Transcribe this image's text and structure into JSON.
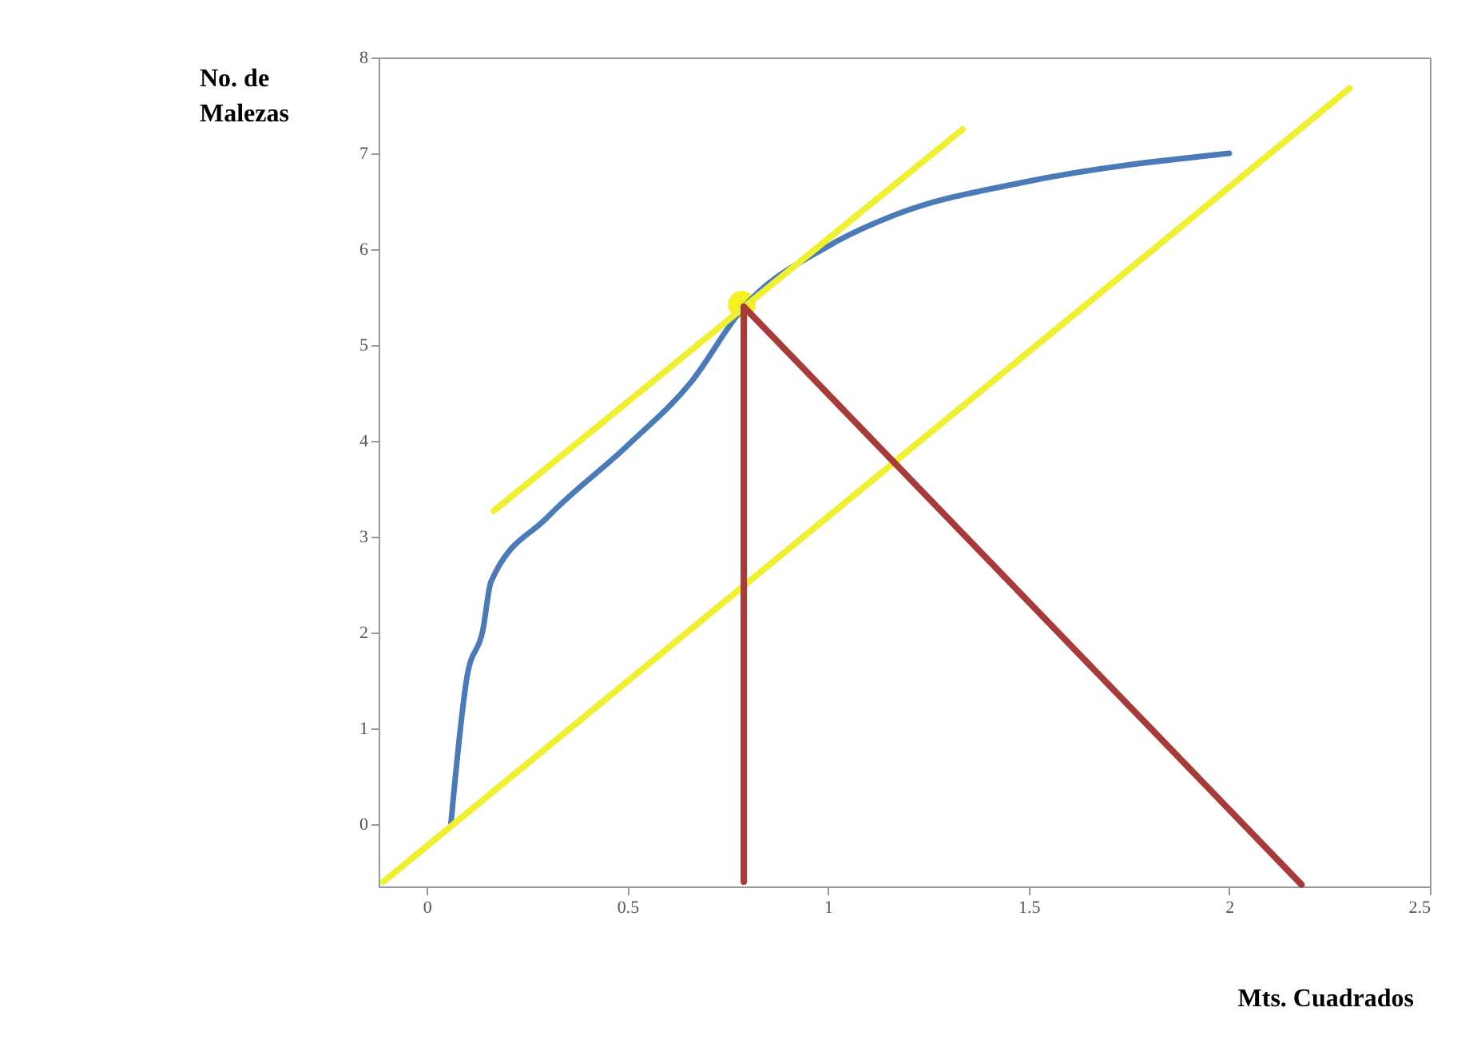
{
  "chart_data": {
    "type": "line",
    "xlabel": "Mts. Cuadrados",
    "ylabel": "No. de\nMalezas",
    "xlim": [
      -0.12,
      2.5
    ],
    "ylim": [
      -0.65,
      8
    ],
    "xticks": [
      0,
      0.5,
      1,
      1.5,
      2,
      2.5
    ],
    "yticks": [
      0,
      1,
      2,
      3,
      4,
      5,
      6,
      7,
      8
    ],
    "grid": false,
    "marker": "none",
    "line_style": "solid",
    "series": [
      {
        "color": "#4a7ab8",
        "x": [
          0.06,
          0.1,
          0.14,
          0.16,
          0.3,
          0.5,
          0.66,
          0.785,
          1.0,
          1.175,
          1.49,
          2.0
        ],
        "values": [
          0,
          1.53,
          2.03,
          2.53,
          3.2,
          3.95,
          4.62,
          5.37,
          6.03,
          6.37,
          6.7,
          7.0
        ]
      },
      {
        "color": "#f0f032",
        "x": [
          0.167,
          1.335
        ],
        "values": [
          3.27,
          7.25
        ]
      },
      {
        "color": "#f0f032",
        "x": [
          -0.108,
          2.3
        ],
        "values": [
          -0.6,
          7.68
        ]
      },
      {
        "color": "#a83a3a",
        "x": [
          0.79,
          0.79
        ],
        "values": [
          5.4,
          -0.6
        ]
      },
      {
        "color": "#a83a3a",
        "x": [
          0.79,
          2.18
        ],
        "values": [
          5.4,
          -0.63
        ]
      },
      {
        "type": "scatter",
        "marker": "circle",
        "color": "#f5f020",
        "x": [
          0.785
        ],
        "values": [
          5.42
        ]
      }
    ]
  }
}
